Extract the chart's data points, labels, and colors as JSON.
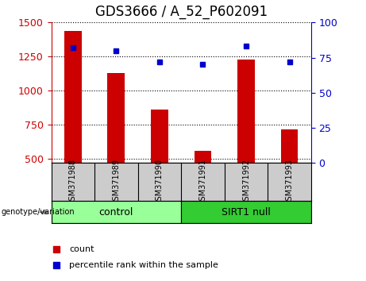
{
  "title": "GDS3666 / A_52_P602091",
  "categories": [
    "GSM371988",
    "GSM371989",
    "GSM371990",
    "GSM371991",
    "GSM371992",
    "GSM371993"
  ],
  "bar_values": [
    1440,
    1130,
    860,
    560,
    1230,
    715
  ],
  "percentile_values": [
    82,
    80,
    72,
    70,
    83,
    72
  ],
  "ylim_left": [
    470,
    1500
  ],
  "ylim_right": [
    0,
    100
  ],
  "yticks_left": [
    500,
    750,
    1000,
    1250,
    1500
  ],
  "yticks_right": [
    0,
    25,
    50,
    75,
    100
  ],
  "bar_color": "#cc0000",
  "dot_color": "#0000cc",
  "bar_width": 0.4,
  "control_label": "control",
  "sirt1_label": "SIRT1 null",
  "genotype_label": "genotype/variation",
  "control_color": "#99ff99",
  "sirt1_color": "#33cc33",
  "xlabel_area_color": "#cccccc",
  "legend_count_label": "count",
  "legend_percentile_label": "percentile rank within the sample",
  "title_fontsize": 12,
  "tick_fontsize": 9,
  "label_fontsize": 9
}
